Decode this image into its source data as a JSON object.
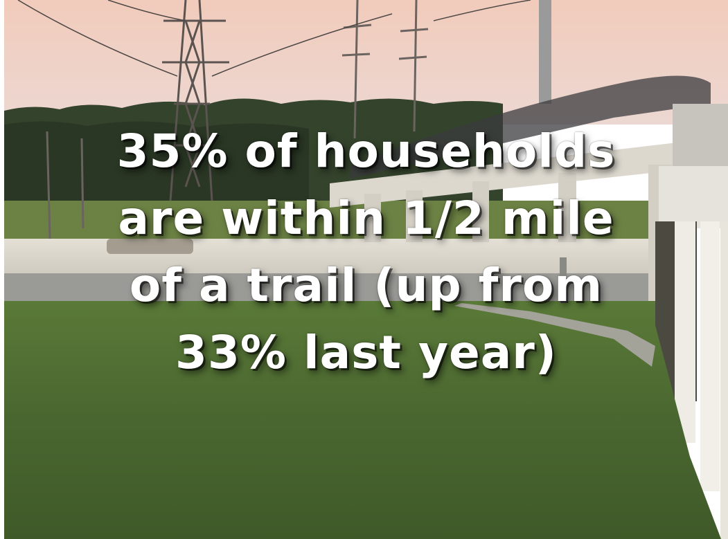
{
  "caption": {
    "line1": "35% of households",
    "line2": "are within 1/2 mile",
    "line3": "of a trail (up from",
    "line4": "33% last year)"
  },
  "colors": {
    "sky_top": "#f4cdbd",
    "sky_bottom": "#eed6cf",
    "treeline": "#2f3d2a",
    "grass": "#4d6a2f",
    "bridge": "#d9d5cc",
    "text": "#ffffff"
  }
}
